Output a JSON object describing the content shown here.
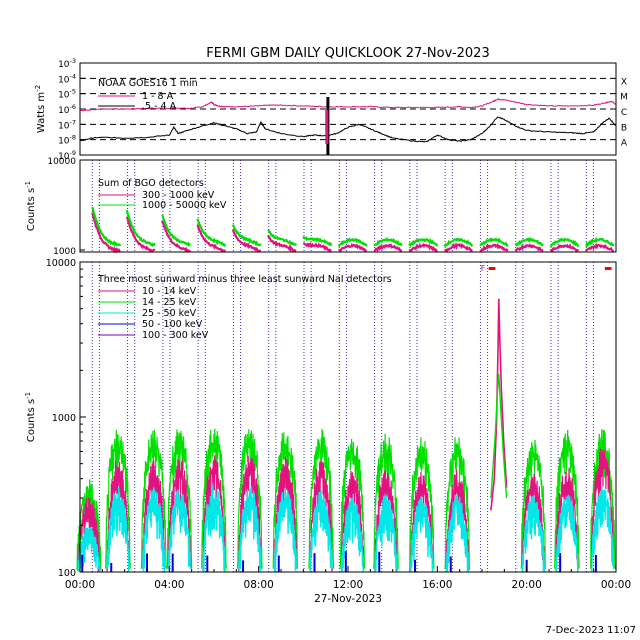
{
  "title": "FERMI GBM DAILY QUICKLOOK  27-Nov-2023",
  "footer_timestamp": "7-Dec-2023 11:07",
  "colors": {
    "magenta": "#e0137f",
    "green": "#00e000",
    "cyan": "#00e8e8",
    "blue": "#0000dd",
    "purple": "#7a00b0",
    "black": "#000000",
    "red": "#ff0000",
    "saa_line": "#3333cc"
  },
  "chart_data": [
    {
      "type": "line",
      "title": "FERMI GBM DAILY QUICKLOOK  27-Nov-2023",
      "ylabel": "Watts m⁻²",
      "y_scale": "log",
      "ylim_exponent": [
        -9,
        -3
      ],
      "ytick_exponents": [
        -3,
        -4,
        -5,
        -6,
        -7,
        -8,
        -9
      ],
      "flare_class_levels": [
        {
          "label": "X",
          "exponent": -4
        },
        {
          "label": "M",
          "exponent": -5
        },
        {
          "label": "C",
          "exponent": -6
        },
        {
          "label": "B",
          "exponent": -7
        },
        {
          "label": "A",
          "exponent": -8
        }
      ],
      "legend_title": "NOAA GOES16 1 min",
      "legend": [
        "1 - 8 A",
        ".5 - 4 A"
      ],
      "series": [
        {
          "name": "1 - 8 A",
          "color": "magenta",
          "x": [
            0,
            1,
            2,
            3,
            4,
            5,
            5.5,
            5.9,
            6,
            6.2,
            6.5,
            7,
            8,
            8.5,
            9,
            10,
            11,
            12,
            13,
            14,
            15,
            16,
            17,
            17.5,
            18,
            18.5,
            18.7,
            19,
            19.5,
            20,
            21,
            22,
            23,
            23.5,
            23.8,
            24
          ],
          "y_exp": [
            -6.1,
            -6.0,
            -6.0,
            -5.95,
            -5.95,
            -5.95,
            -5.85,
            -5.55,
            -5.7,
            -5.8,
            -5.85,
            -5.85,
            -5.8,
            -5.75,
            -5.75,
            -5.8,
            -5.85,
            -5.85,
            -5.85,
            -5.9,
            -5.9,
            -5.9,
            -5.85,
            -5.9,
            -5.8,
            -5.5,
            -5.35,
            -5.4,
            -5.55,
            -5.7,
            -5.8,
            -5.8,
            -5.75,
            -5.6,
            -5.5,
            -5.7
          ]
        },
        {
          "name": ".5 - 4 A",
          "color": "black",
          "x": [
            0,
            0.5,
            1,
            2,
            3,
            4,
            4.2,
            4.4,
            4.8,
            5.5,
            6,
            6.5,
            7,
            7.5,
            7.9,
            8.1,
            8.3,
            9,
            10,
            10.5,
            11,
            11.5,
            12,
            12.5,
            13,
            13.5,
            14,
            15,
            15.5,
            16,
            16.5,
            17,
            17.5,
            18,
            18.3,
            18.7,
            19,
            19.5,
            20,
            21,
            22,
            22.5,
            23,
            23.4,
            23.7,
            24
          ],
          "y_exp": [
            -8.1,
            -7.9,
            -7.85,
            -7.9,
            -7.85,
            -7.7,
            -7.2,
            -7.6,
            -7.4,
            -7.1,
            -6.9,
            -7.1,
            -7.3,
            -7.6,
            -7.5,
            -6.85,
            -7.3,
            -7.6,
            -7.8,
            -7.7,
            -7.75,
            -7.6,
            -7.2,
            -7.0,
            -7.3,
            -7.6,
            -7.9,
            -8.1,
            -8.15,
            -7.7,
            -8.0,
            -8.1,
            -8.0,
            -7.6,
            -7.2,
            -6.5,
            -6.7,
            -7.1,
            -7.4,
            -7.5,
            -7.55,
            -7.6,
            -7.5,
            -6.9,
            -6.6,
            -7.1
          ]
        }
      ],
      "data_gaps": [
        {
          "x": 11.1,
          "color": "black"
        },
        {
          "x": 11.05,
          "color": "magenta"
        }
      ]
    },
    {
      "type": "line",
      "ylabel": "Counts s⁻¹",
      "y_scale": "log",
      "ylim": [
        950,
        10000
      ],
      "ytick_labels": [
        "10000",
        "1000"
      ],
      "legend_title": "Sum of BGO detectors",
      "legend": [
        "300 - 1000 keV",
        "1000 - 50000 keV"
      ],
      "series": [
        {
          "name": "300 - 1000 keV",
          "color": "magenta"
        },
        {
          "name": "1000 - 50000 keV",
          "color": "green"
        }
      ]
    },
    {
      "type": "line",
      "ylabel": "Counts s⁻¹",
      "y_scale": "log",
      "ylim": [
        100,
        10000
      ],
      "ytick_labels": [
        "10000",
        "1000",
        "100"
      ],
      "xlabel": "27-Nov-2023",
      "x_tick_labels": [
        "00:00",
        "04:00",
        "08:00",
        "12:00",
        "16:00",
        "20:00",
        "00:00"
      ],
      "x_range_hours": [
        0,
        24
      ],
      "legend_title": "Three most sunward minus three least sunward NaI detectors",
      "legend": [
        "10 - 14 keV",
        "14 - 25 keV",
        "25 - 50 keV",
        "50 - 100 keV",
        "100 - 300 keV"
      ],
      "series": [
        {
          "name": "10 - 14 keV",
          "color": "magenta"
        },
        {
          "name": "14 - 25 keV",
          "color": "green"
        },
        {
          "name": "25 - 50 keV",
          "color": "cyan"
        },
        {
          "name": "50 - 100 keV",
          "color": "blue"
        },
        {
          "name": "100 - 300 keV",
          "color": "purple"
        }
      ],
      "flare_peak": {
        "x": 18.75,
        "value": 5800
      },
      "annotation_label": "F",
      "saa_bars": [
        [
          18.3,
          18.6
        ],
        [
          23.5,
          23.8
        ]
      ],
      "orbit_peaks": [
        {
          "x": 0.4,
          "green": 380,
          "magenta": 300,
          "cyan": 200
        },
        {
          "x": 1.7,
          "green": 800,
          "magenta": 500,
          "cyan": 330
        },
        {
          "x": 3.3,
          "green": 820,
          "magenta": 500,
          "cyan": 330
        },
        {
          "x": 4.45,
          "green": 800,
          "magenta": 520,
          "cyan": 330
        },
        {
          "x": 6.0,
          "green": 820,
          "magenta": 540,
          "cyan": 350
        },
        {
          "x": 7.6,
          "green": 820,
          "magenta": 530,
          "cyan": 340
        },
        {
          "x": 9.2,
          "green": 800,
          "magenta": 520,
          "cyan": 340
        },
        {
          "x": 10.8,
          "green": 780,
          "magenta": 500,
          "cyan": 320
        },
        {
          "x": 12.2,
          "green": 720,
          "magenta": 430,
          "cyan": 290
        },
        {
          "x": 13.7,
          "green": 730,
          "magenta": 440,
          "cyan": 300
        },
        {
          "x": 15.3,
          "green": 700,
          "magenta": 420,
          "cyan": 290
        },
        {
          "x": 16.9,
          "green": 710,
          "magenta": 430,
          "cyan": 300
        },
        {
          "x": 20.3,
          "green": 700,
          "magenta": 430,
          "cyan": 300
        },
        {
          "x": 21.8,
          "green": 770,
          "magenta": 460,
          "cyan": 310
        },
        {
          "x": 23.4,
          "green": 780,
          "magenta": 600,
          "cyan": 340
        }
      ]
    }
  ]
}
